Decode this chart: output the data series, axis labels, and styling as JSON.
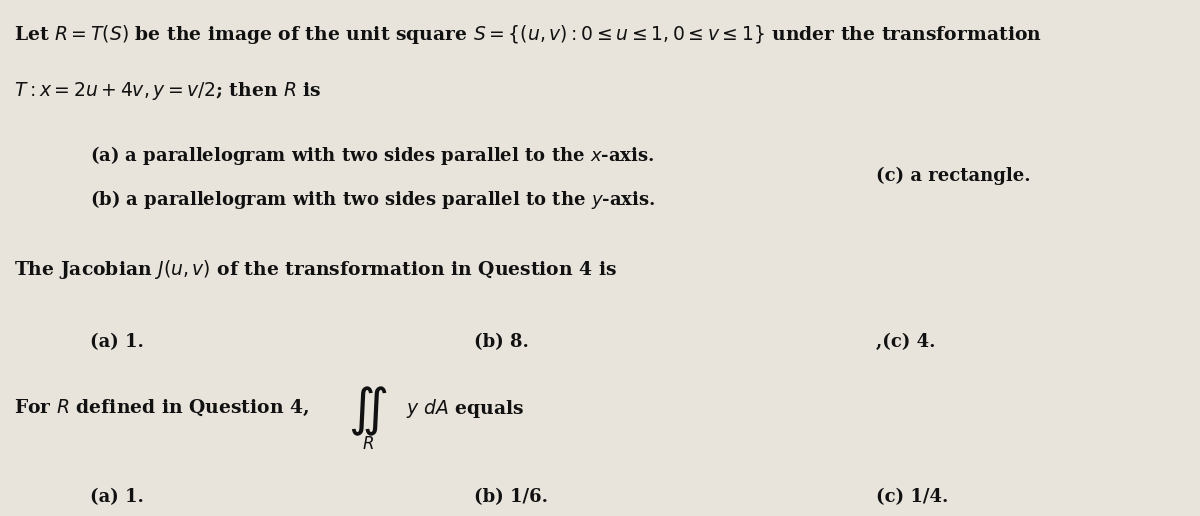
{
  "bg_color": "#e8e4dc",
  "text_color": "#111111",
  "figsize": [
    12.0,
    5.16
  ],
  "dpi": 100,
  "line1": "Let $R = T(S)$ be the image of the unit square $S = \\{(u, v): 0 \\leq u \\leq 1, 0 \\leq v \\leq 1\\}$ under the transformation",
  "line2": "$T: x = 2u + 4v, y = v/2$; then $R$ is",
  "q1a": "(a) a parallelogram with two sides parallel to the $x$-axis.",
  "q1b": "(b) a parallelogram with two sides parallel to the $y$-axis.",
  "q1c": "(c) a rectangle.",
  "q2_intro": "The Jacobian $J(u, v)$ of the transformation in Question 4 is",
  "q2a": "(a) 1.",
  "q2b": "(b) 8.",
  "q2c": ",(c) 4.",
  "q3_intro_left": "For $R$ defined in Question 4,",
  "q3_intro_right": "$y\\ dA$ equals",
  "q3a": "(a) 1.",
  "q3b": "(b) 1/6.",
  "q3c": "(c) 1/4.",
  "font_size_main": 13.5,
  "font_size_options": 13,
  "font_size_integral": 26
}
